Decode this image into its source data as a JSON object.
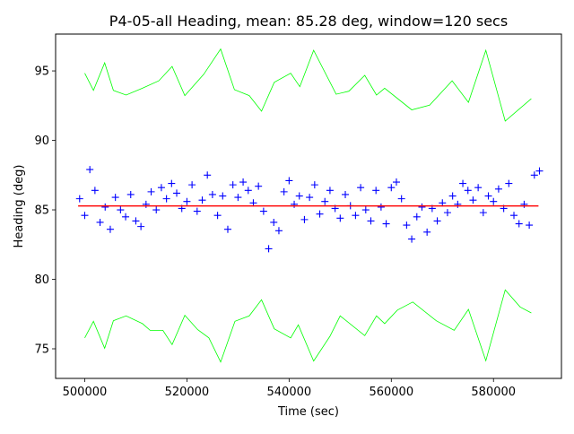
{
  "chart_data": {
    "type": "scatter",
    "title": "P4-05-all Heading, mean: 85.28 deg, window=120 secs",
    "xlabel": "Time (sec)",
    "ylabel": "Heading (deg)",
    "xlim": [
      494300,
      593300
    ],
    "ylim": [
      72.87,
      97.65
    ],
    "xticks": [
      500000,
      520000,
      540000,
      560000,
      580000
    ],
    "xtick_labels": [
      "500000",
      "520000",
      "540000",
      "560000",
      "580000"
    ],
    "yticks": [
      75,
      80,
      85,
      90,
      95
    ],
    "ytick_labels": [
      "75",
      "80",
      "85",
      "90",
      "95"
    ],
    "grid": false,
    "colors": {
      "scatter": "#0000ff",
      "mean": "#ff0000",
      "envelope": "#00ff00"
    },
    "series": [
      {
        "name": "heading",
        "type": "scatter",
        "marker": "+",
        "x": [
          499000,
          500000,
          501000,
          502000,
          503000,
          504000,
          505000,
          506000,
          507000,
          508000,
          509000,
          510000,
          511000,
          512000,
          513000,
          514000,
          515000,
          516000,
          517000,
          518000,
          519000,
          520000,
          521000,
          522000,
          523000,
          524000,
          525000,
          526000,
          527000,
          528000,
          529000,
          530000,
          531000,
          532000,
          533000,
          534000,
          535000,
          536000,
          537000,
          538000,
          539000,
          540000,
          541000,
          542000,
          543000,
          544000,
          545000,
          546000,
          547000,
          548000,
          549000,
          550000,
          551000,
          552000,
          553000,
          554000,
          555000,
          556000,
          557000,
          558000,
          559000,
          560000,
          561000,
          562000,
          563000,
          564000,
          565000,
          566000,
          567000,
          568000,
          569000,
          570000,
          571000,
          572000,
          573000,
          574000,
          575000,
          576000,
          577000,
          578000,
          579000,
          580000,
          581000,
          582000,
          583000,
          584000,
          585000,
          586000,
          587000,
          588000,
          589000
        ],
        "y": [
          85.8,
          84.6,
          87.9,
          86.4,
          84.1,
          85.2,
          83.6,
          85.9,
          85.0,
          84.5,
          86.1,
          84.2,
          83.8,
          85.4,
          86.3,
          85.0,
          86.6,
          85.8,
          86.9,
          86.2,
          85.1,
          85.6,
          86.8,
          84.9,
          85.7,
          87.5,
          86.1,
          84.6,
          86.0,
          83.6,
          86.8,
          85.9,
          87.0,
          86.4,
          85.5,
          86.7,
          84.9,
          82.2,
          84.1,
          83.5,
          86.3,
          87.1,
          85.4,
          86.0,
          84.3,
          85.9,
          86.8,
          84.7,
          85.6,
          86.4,
          85.1,
          84.4,
          86.1,
          85.3,
          84.6,
          86.6,
          85.0,
          84.2,
          86.4,
          85.2,
          84.0,
          86.6,
          87.0,
          85.8,
          83.9,
          82.9,
          84.5,
          85.2,
          83.4,
          85.1,
          84.2,
          85.5,
          84.8,
          86.0,
          85.4,
          86.9,
          86.4,
          85.7,
          86.6,
          84.8,
          86.0,
          85.6,
          86.5,
          85.1,
          86.9,
          84.6,
          84.0,
          85.4,
          83.9,
          87.5,
          87.8
        ]
      },
      {
        "name": "mean",
        "type": "line",
        "x": [
          498700,
          588800
        ],
        "y": [
          85.28,
          85.28
        ]
      },
      {
        "name": "upper-envelope",
        "type": "line",
        "x": [
          500000,
          501700,
          503900,
          505600,
          508100,
          511300,
          514500,
          517100,
          519600,
          523300,
          526600,
          529300,
          532200,
          534600,
          537100,
          540300,
          542100,
          544800,
          549200,
          551700,
          554800,
          557100,
          558700,
          564000,
          567500,
          571900,
          575100,
          578500,
          582300,
          587400
        ],
        "y": [
          94.83,
          93.6,
          95.58,
          93.6,
          93.26,
          93.75,
          94.29,
          95.32,
          93.22,
          94.76,
          96.57,
          93.65,
          93.22,
          92.1,
          94.18,
          94.83,
          93.86,
          96.48,
          93.32,
          93.54,
          94.68,
          93.26,
          93.75,
          92.2,
          92.53,
          94.29,
          92.74,
          96.48,
          91.39,
          93.0
        ]
      },
      {
        "name": "lower-envelope",
        "type": "line",
        "x": [
          500000,
          501700,
          503900,
          505600,
          508100,
          511300,
          512800,
          515300,
          517100,
          519600,
          522100,
          524300,
          526600,
          529400,
          532200,
          534600,
          537100,
          540300,
          541800,
          544800,
          548000,
          550000,
          554800,
          557100,
          558700,
          561200,
          564200,
          568800,
          572300,
          575100,
          578500,
          582300,
          585200,
          587400
        ],
        "y": [
          75.79,
          76.98,
          75.04,
          77.02,
          77.37,
          76.81,
          76.33,
          76.33,
          75.3,
          77.41,
          76.38,
          75.79,
          74.05,
          76.98,
          77.37,
          78.53,
          76.44,
          75.79,
          76.72,
          74.12,
          75.9,
          77.37,
          75.95,
          77.37,
          76.81,
          77.79,
          78.37,
          77.02,
          76.33,
          77.84,
          74.14,
          79.24,
          78.01,
          77.58
        ]
      }
    ]
  }
}
